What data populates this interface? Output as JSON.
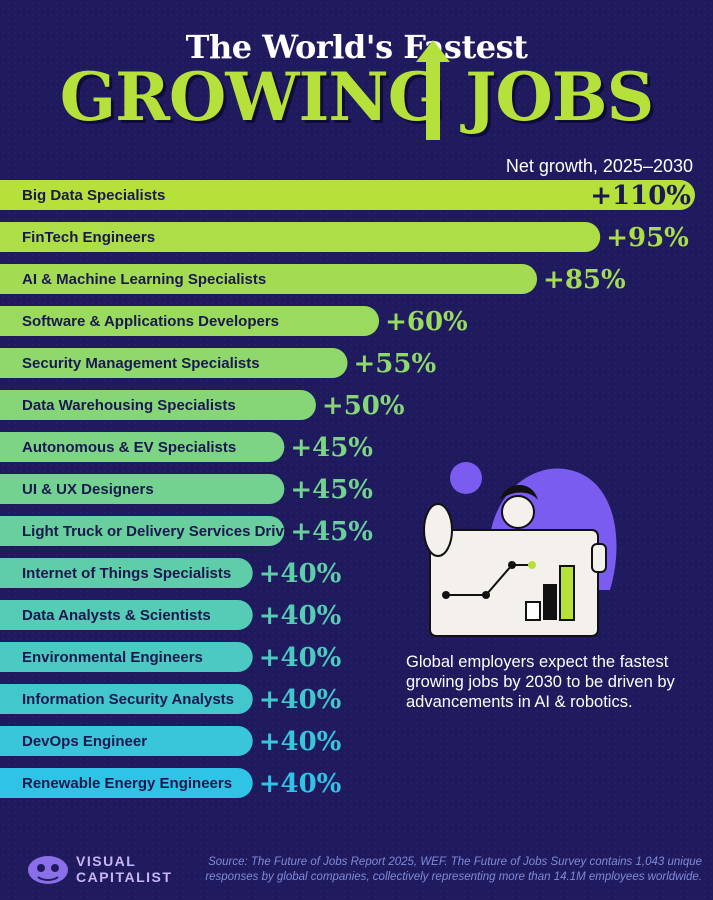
{
  "header": {
    "title_line1": "The World's Fastest",
    "title_line2": "GROWING JOBS",
    "subtitle": "Net growth, 2025–2030"
  },
  "chart_data": {
    "type": "bar",
    "orientation": "horizontal",
    "title": "The World's Fastest Growing Jobs",
    "subtitle": "Net growth, 2025–2030",
    "categories": [
      "Big Data Specialists",
      "FinTech Engineers",
      "AI & Machine Learning Specialists",
      "Software & Applications Developers",
      "Security Management Specialists",
      "Data Warehousing Specialists",
      "Autonomous & EV Specialists",
      "UI & UX Designers",
      "Light Truck or Delivery Services Drivers",
      "Internet of Things Specialists",
      "Data Analysts & Scientists",
      "Environmental Engineers",
      "Information Security Analysts",
      "DevOps Engineer",
      "Renewable Energy Engineers"
    ],
    "values": [
      110,
      95,
      85,
      60,
      55,
      50,
      45,
      45,
      45,
      40,
      40,
      40,
      40,
      40,
      40
    ],
    "value_labels": [
      "+110%",
      "+95%",
      "+85%",
      "+60%",
      "+55%",
      "+50%",
      "+45%",
      "+45%",
      "+45%",
      "+40%",
      "+40%",
      "+40%",
      "+40%",
      "+40%",
      "+40%"
    ],
    "unit": "%",
    "colors": {
      "top": "#b6e03a",
      "bottom": "#2fc3e6"
    }
  },
  "blurb": "Global employers expect the fastest growing jobs by 2030 to be driven by advancements in AI & robotics.",
  "footer": {
    "logo_line1": "VISUAL",
    "logo_line2": "CAPITALIST",
    "source": "Source: The Future of Jobs Report 2025, WEF. The Future of Jobs Survey contains 1,043 unique responses by global companies, collectively representing more than 14.1M employees worldwide."
  },
  "colors": {
    "background": "#1f1a5e",
    "accent_green": "#b6e03a",
    "accent_cyan": "#2fc3e6",
    "illustration_purple": "#7b5cf0"
  }
}
